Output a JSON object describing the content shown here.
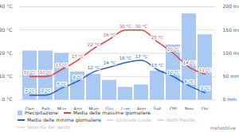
{
  "chart_data": {
    "type": "bar",
    "categories": [
      "Gen",
      "Feb",
      "Mar",
      "Apr",
      "Mag",
      "Giu",
      "Lug",
      "Ago",
      "Set",
      "Ott",
      "Nov",
      "Dic"
    ],
    "series": [
      {
        "name": "Precipitazione",
        "type": "bar",
        "axis": "y2",
        "color": "#a9c9f2",
        "values": [
          105,
          105,
          100,
          60,
          55,
          42,
          27,
          32,
          62,
          118,
          185,
          140
        ]
      },
      {
        "name": "Media delle massime giornaliere",
        "type": "line",
        "color": "#e0433b",
        "values": [
          10,
          10,
          13,
          17,
          22,
          26,
          30,
          30,
          25,
          20,
          14,
          11
        ],
        "value_labels": [
          "10 °C",
          "10 °C",
          "13 °C",
          "17 °C",
          "22 °C",
          "26 °C",
          "30 °C",
          "30 °C",
          "25 °C",
          "20 °C",
          "14 °C",
          "11 °C"
        ]
      },
      {
        "name": "Media delle minime giornaliere",
        "type": "line",
        "color": "#2a62b8",
        "values": [
          2,
          2,
          5,
          8,
          12,
          14,
          16,
          17,
          13,
          10,
          6,
          3
        ],
        "value_labels": [
          "2 °C",
          "2 °C",
          "5 °C",
          "8 °C",
          "12 °C",
          "14 °C",
          "16 °C",
          "17 °C",
          "13 °C",
          "10 °C",
          "6 °C",
          "3 °C"
        ]
      }
    ],
    "ylim": [
      0,
      40
    ],
    "yticks": [
      {
        "value": 0,
        "label": "0 °C"
      },
      {
        "value": 10,
        "label": "10 °C"
      },
      {
        "value": 20,
        "label": "20 °C"
      },
      {
        "value": 30,
        "label": "30 °C"
      },
      {
        "value": 40,
        "label": "40 °C"
      }
    ],
    "y2lim": [
      0,
      200
    ],
    "y2ticks": [
      {
        "value": 0,
        "label": "0 mm"
      },
      {
        "value": 50,
        "label": "50 mm"
      },
      {
        "value": 100,
        "label": "100 mm"
      },
      {
        "value": 150,
        "label": "150 mm"
      },
      {
        "value": 200,
        "label": "200 mm"
      }
    ],
    "grid": true,
    "data_labels": true,
    "annotations": [
      "Giornate calde",
      "Notti fredde",
      "Velocità del vento"
    ],
    "source": "meteoblue"
  }
}
